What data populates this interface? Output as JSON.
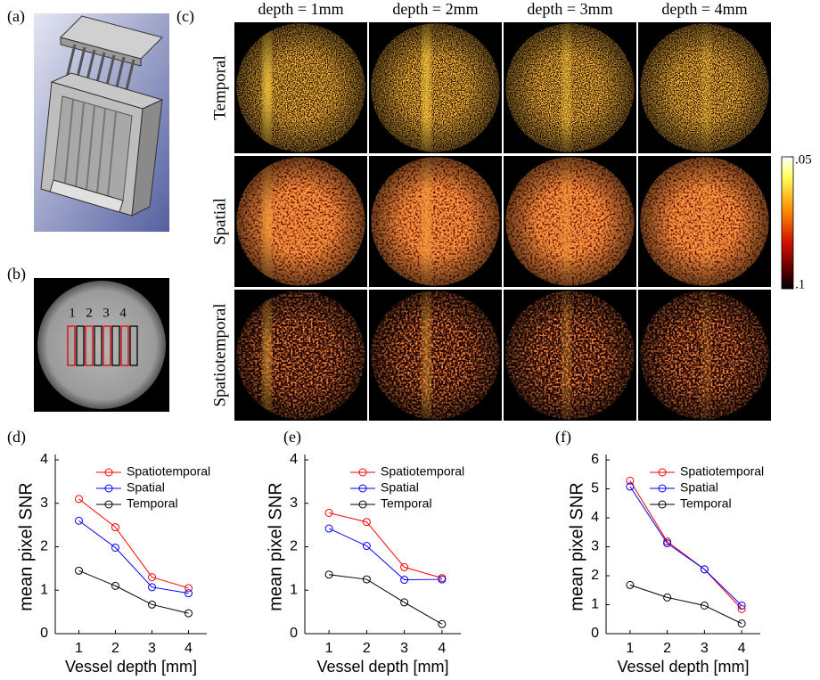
{
  "panel_labels": [
    "(a)",
    "(b)",
    "(c)",
    "(d)",
    "(e)",
    "(f)"
  ],
  "roi_labels": [
    "1",
    "2",
    "3",
    "4"
  ],
  "image_grid": {
    "columns": [
      "depth = 1mm",
      "depth = 2mm",
      "depth = 3mm",
      "depth = 4mm"
    ],
    "rows": [
      "Temporal",
      "Spatial",
      "Spatiotemporal"
    ]
  },
  "colorbar": {
    "lim": [
      0.05,
      0.1
    ],
    "ticks": [
      {
        "value": 0.05,
        "label": ".05"
      },
      {
        "value": 0.1,
        "label": ".1"
      }
    ]
  },
  "chart_data": [
    {
      "type": "line",
      "xlabel": "Vessel depth [mm]",
      "ylabel": "mean pixel SNR",
      "x": [
        1,
        2,
        3,
        4
      ],
      "xlim": [
        0.5,
        4.5
      ],
      "xticks": [
        1,
        2,
        3,
        4
      ],
      "ylim": [
        0,
        4
      ],
      "yticks": [
        0,
        1,
        2,
        3,
        4
      ],
      "legend": "top-right",
      "series": [
        {
          "name": "Spatiotemporal",
          "color": "#ff0000",
          "values": [
            3.1,
            2.45,
            1.3,
            1.05
          ]
        },
        {
          "name": "Spatial",
          "color": "#0000ff",
          "values": [
            2.6,
            1.98,
            1.07,
            0.93
          ]
        },
        {
          "name": "Temporal",
          "color": "#000000",
          "values": [
            1.45,
            1.1,
            0.67,
            0.47
          ]
        }
      ]
    },
    {
      "type": "line",
      "xlabel": "Vessel depth [mm]",
      "ylabel": "mean pixel SNR",
      "x": [
        1,
        2,
        3,
        4
      ],
      "xlim": [
        0.5,
        4.5
      ],
      "xticks": [
        1,
        2,
        3,
        4
      ],
      "ylim": [
        0,
        4
      ],
      "yticks": [
        0,
        1,
        2,
        3,
        4
      ],
      "legend": "top-right",
      "series": [
        {
          "name": "Spatiotemporal",
          "color": "#ff0000",
          "values": [
            2.78,
            2.57,
            1.53,
            1.28
          ]
        },
        {
          "name": "Spatial",
          "color": "#0000ff",
          "values": [
            2.42,
            2.02,
            1.24,
            1.25
          ]
        },
        {
          "name": "Temporal",
          "color": "#000000",
          "values": [
            1.36,
            1.25,
            0.72,
            0.22
          ]
        }
      ]
    },
    {
      "type": "line",
      "xlabel": "Vessel depth [mm]",
      "ylabel": "mean pixel SNR",
      "x": [
        1,
        2,
        3,
        4
      ],
      "xlim": [
        0.5,
        4.5
      ],
      "xticks": [
        1,
        2,
        3,
        4
      ],
      "ylim": [
        0,
        6
      ],
      "yticks": [
        0,
        1,
        2,
        3,
        4,
        5,
        6
      ],
      "legend": "top-right",
      "series": [
        {
          "name": "Spatiotemporal",
          "color": "#ff0000",
          "values": [
            5.28,
            3.18,
            2.22,
            0.85
          ]
        },
        {
          "name": "Spatial",
          "color": "#0000ff",
          "values": [
            5.08,
            3.12,
            2.22,
            0.97
          ]
        },
        {
          "name": "Temporal",
          "color": "#000000",
          "values": [
            1.68,
            1.25,
            0.97,
            0.35
          ]
        }
      ]
    }
  ]
}
